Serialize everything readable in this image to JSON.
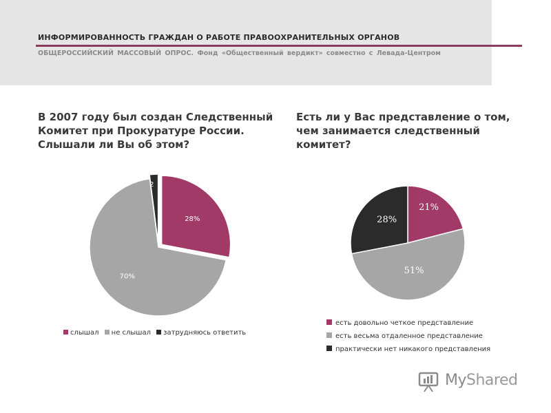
{
  "header": {
    "title": "ИНФОРМИРОВАННОСТЬ ГРАЖДАН О РАБОТЕ ПРАВООХРАНИТЕЛЬНЫХ ОРГАНОВ",
    "subtitle": "ОБЩЕРОССИЙСКИЙ МАССОВЫЙ ОПРОС. Фонд «Общественный вердикт» совместно с Левада-Центром",
    "accent_color": "#8c3a5e"
  },
  "watermark": {
    "text_my": "My",
    "text_shared": "Shared",
    "icon": "myshared-logo-icon"
  },
  "chart_data": [
    {
      "type": "pie",
      "title": "В 2007 году был создан Следственный Комитет при Прокуратуре России. Слышали ли Вы об этом?",
      "slices": [
        {
          "label": "слышал",
          "value": 28,
          "display": "28%",
          "color": "#a13a66"
        },
        {
          "label": "не слышал",
          "value": 70,
          "display": "70%",
          "color": "#a6a6a6"
        },
        {
          "label": "затрудняюсь ответить",
          "value": 2,
          "display": "2",
          "color": "#2b2b2b"
        }
      ],
      "exploded_slice": "слышал",
      "legend_position": "bottom"
    },
    {
      "type": "pie",
      "title": "Есть ли у Вас представление о том, чем занимается следственный комитет?",
      "slices": [
        {
          "label": "есть довольно четкое представление",
          "value": 21,
          "display": "21%",
          "color": "#a13a66"
        },
        {
          "label": "есть весьма отдаленное представление",
          "value": 51,
          "display": "51%",
          "color": "#a6a6a6"
        },
        {
          "label": "практически нет никакого представления",
          "value": 28,
          "display": "28%",
          "color": "#2b2b2b"
        }
      ],
      "legend_position": "bottom"
    }
  ]
}
